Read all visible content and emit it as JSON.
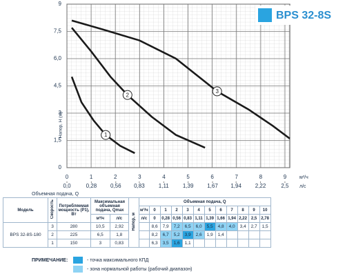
{
  "chart_data": {
    "type": "line",
    "title": "BPS 32-8S",
    "y_label": "Напор, H (м)",
    "x_label": "Объемная подача, Q",
    "x_unit": "м³/ч",
    "x2_unit": "л/с",
    "xlim": [
      0,
      9.2
    ],
    "ylim": [
      0,
      9
    ],
    "x2lim": [
      0,
      2.556
    ],
    "grid": true,
    "xticks": [
      0,
      1,
      2,
      3,
      4,
      5,
      6,
      7,
      8,
      9
    ],
    "x2ticks": [
      {
        "value": 0,
        "label": "0,0"
      },
      {
        "value": 0.28,
        "label": "0,28"
      },
      {
        "value": 0.56,
        "label": "0,56"
      },
      {
        "value": 0.83,
        "label": "0,83"
      },
      {
        "value": 1.11,
        "label": "1,11"
      },
      {
        "value": 1.39,
        "label": "1,39"
      },
      {
        "value": 1.67,
        "label": "1,67"
      },
      {
        "value": 1.94,
        "label": "1,94"
      },
      {
        "value": 2.22,
        "label": "2,22"
      },
      {
        "value": 2.5,
        "label": "2,5"
      }
    ],
    "yticks": [
      0,
      {
        "value": 1.5,
        "label": "1,5"
      },
      3,
      {
        "value": 4.5,
        "label": "4,5"
      },
      {
        "value": 6,
        "label": "6,0"
      },
      {
        "value": 7.5,
        "label": "7,5"
      },
      9
    ],
    "series": [
      {
        "name": "1",
        "color": "#1a1a1a",
        "x": [
          0.2,
          0.6,
          1.1,
          1.6,
          2.2,
          2.8
        ],
        "values": [
          5.0,
          3.6,
          2.6,
          1.8,
          1.2,
          0.8
        ]
      },
      {
        "name": "2",
        "color": "#1a1a1a",
        "x": [
          0.2,
          1,
          1.8,
          2.5,
          3.5,
          4.5,
          5.7
        ],
        "values": [
          7.7,
          6.4,
          5.0,
          4.0,
          2.8,
          1.8,
          1.1
        ]
      },
      {
        "name": "3",
        "color": "#1a1a1a",
        "x": [
          0.2,
          1.5,
          3,
          4.5,
          6.2,
          7.5,
          8.5,
          9.2
        ],
        "values": [
          8.1,
          7.6,
          7.0,
          6.0,
          4.2,
          3.2,
          2.3,
          1.6
        ]
      }
    ]
  },
  "table": {
    "headers": {
      "model": "Модель",
      "speed": "Скорость",
      "power": "Потребляемая мощность (P1), Вт",
      "qmax": "Максимальная объемная подача, Qmax",
      "qmax_m3": "м³/ч",
      "qmax_ls": "л/с",
      "flow": "Объемная подача, Q",
      "head": "Напор, м",
      "flow_m3": "м³/ч",
      "flow_ls": "л/с"
    },
    "flow_m3": [
      "0",
      "1",
      "2",
      "3",
      "4",
      "5",
      "6",
      "7",
      "8",
      "9",
      "10"
    ],
    "flow_ls": [
      "0",
      "0,28",
      "0,56",
      "0,83",
      "1,11",
      "1,39",
      "1,66",
      "1,94",
      "2,22",
      "2,5",
      "2,78"
    ],
    "model": "BPS 32-8S-180",
    "rows": [
      {
        "speed": "3",
        "power": "280",
        "qmax_m3": "10,5",
        "qmax_ls": "2,92",
        "head": [
          "8,6",
          "7,9",
          "7,2",
          "6,5",
          "6,0",
          "5,5",
          "4,8",
          "4,0",
          "3,4",
          "2,7",
          "1,5"
        ]
      },
      {
        "speed": "2",
        "power": "225",
        "qmax_m3": "6,5",
        "qmax_ls": "1,8",
        "head": [
          "8,2",
          "6,7",
          "5,2",
          "3,9",
          "2,6",
          "1,9",
          "1,4"
        ]
      },
      {
        "speed": "1",
        "power": "150",
        "qmax_m3": "3",
        "qmax_ls": "0,83",
        "head": [
          "6,3",
          "3,5",
          "1,6",
          "1,1"
        ]
      }
    ]
  },
  "note": {
    "title": "ПРИМЕЧАНИЕ:",
    "max_eff": "- точка максимального КПД",
    "work_zone": "- зона нормальной работы (рабочий диапазон)"
  }
}
